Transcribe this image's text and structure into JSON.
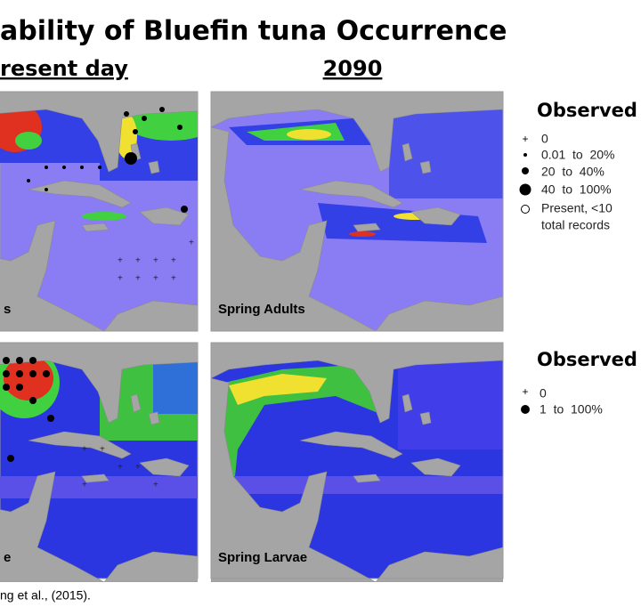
{
  "title": "ability of Bluefin tuna Occurrence",
  "columns": [
    "resent day",
    "2090"
  ],
  "legends": [
    {
      "title": "Observed",
      "items": [
        "0",
        "0.01  to  20%",
        "20  to  40%",
        "40  to  100%",
        "Present, <10",
        "total records"
      ]
    },
    {
      "title": "Observed",
      "items": [
        "0",
        "1  to  100%"
      ]
    }
  ],
  "panels": [
    "s",
    "Spring Adults",
    "e",
    "Spring Larvae"
  ],
  "citation": "ng et al., (2015)."
}
